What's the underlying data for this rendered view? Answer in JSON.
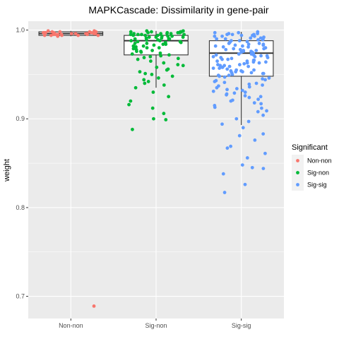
{
  "chart_data": {
    "type": "box+jitter",
    "title": "MAPKCascade: Dissimilarity in gene-pair",
    "xlabel": "",
    "ylabel": "weight",
    "ylim": [
      0.675,
      1.01
    ],
    "yticks": [
      0.7,
      0.8,
      0.9,
      1.0
    ],
    "ytick_labels": [
      "0.7",
      "0.8",
      "0.9",
      "1.0"
    ],
    "grid": true,
    "categories": [
      "Non-non",
      "Sig-non",
      "Sig-sig"
    ],
    "legend": {
      "title": "Significant",
      "placement": "right",
      "entries": [
        "Non-non",
        "Sig-non",
        "Sig-sig"
      ]
    },
    "colors": {
      "panel": "#EBEBEB",
      "grid": "#FFFFFF",
      "Non-non": "#F8766D",
      "Sig-non": "#00BA38",
      "Sig-sig": "#619CFF"
    },
    "series": [
      {
        "name": "Non-non",
        "box": {
          "min": 0.993,
          "q1": 0.994,
          "median": 0.996,
          "q3": 0.998,
          "max": 0.999
        },
        "points": [
          0.999,
          0.998,
          0.998,
          0.997,
          0.997,
          0.997,
          0.996,
          0.996,
          0.996,
          0.996,
          0.995,
          0.995,
          0.995,
          0.995,
          0.994,
          0.994,
          0.994,
          0.994,
          0.993,
          0.998,
          0.997,
          0.996,
          0.999,
          0.995,
          0.997,
          0.996,
          0.998,
          0.994,
          0.996,
          0.997,
          0.689
        ]
      },
      {
        "name": "Sig-non",
        "box": {
          "min": 0.935,
          "q1": 0.972,
          "median": 0.988,
          "q3": 0.994,
          "max": 0.999
        },
        "points": [
          0.999,
          0.999,
          0.998,
          0.998,
          0.998,
          0.997,
          0.997,
          0.997,
          0.996,
          0.996,
          0.996,
          0.995,
          0.995,
          0.995,
          0.994,
          0.994,
          0.993,
          0.993,
          0.992,
          0.992,
          0.991,
          0.991,
          0.99,
          0.99,
          0.989,
          0.988,
          0.988,
          0.987,
          0.986,
          0.986,
          0.985,
          0.984,
          0.983,
          0.982,
          0.981,
          0.98,
          0.979,
          0.978,
          0.977,
          0.976,
          0.975,
          0.974,
          0.973,
          0.972,
          0.971,
          0.97,
          0.969,
          0.968,
          0.967,
          0.965,
          0.963,
          0.961,
          0.96,
          0.958,
          0.956,
          0.955,
          0.953,
          0.951,
          0.95,
          0.948,
          0.946,
          0.944,
          0.942,
          0.94,
          0.938,
          0.935,
          0.93,
          0.925,
          0.92,
          0.916,
          0.912,
          0.906,
          0.9,
          0.899,
          0.888,
          0.997,
          0.995,
          0.993,
          0.99,
          0.987,
          0.984,
          0.98,
          0.976,
          0.996,
          0.992,
          0.989,
          0.998,
          0.994,
          0.985,
          0.982
        ]
      },
      {
        "name": "Sig-sig",
        "box": {
          "min": 0.893,
          "q1": 0.948,
          "median": 0.974,
          "q3": 0.988,
          "max": 0.998
        },
        "points": [
          0.998,
          0.997,
          0.997,
          0.996,
          0.995,
          0.995,
          0.994,
          0.993,
          0.993,
          0.992,
          0.991,
          0.99,
          0.99,
          0.989,
          0.988,
          0.987,
          0.986,
          0.985,
          0.984,
          0.983,
          0.982,
          0.981,
          0.98,
          0.979,
          0.978,
          0.977,
          0.976,
          0.975,
          0.974,
          0.973,
          0.972,
          0.971,
          0.97,
          0.969,
          0.968,
          0.967,
          0.966,
          0.965,
          0.964,
          0.963,
          0.962,
          0.961,
          0.96,
          0.959,
          0.958,
          0.957,
          0.956,
          0.955,
          0.954,
          0.953,
          0.952,
          0.951,
          0.95,
          0.949,
          0.948,
          0.946,
          0.944,
          0.942,
          0.94,
          0.938,
          0.936,
          0.934,
          0.932,
          0.93,
          0.928,
          0.926,
          0.924,
          0.922,
          0.92,
          0.918,
          0.915,
          0.912,
          0.908,
          0.904,
          0.9,
          0.897,
          0.894,
          0.89,
          0.883,
          0.881,
          0.876,
          0.869,
          0.867,
          0.861,
          0.856,
          0.848,
          0.845,
          0.844,
          0.838,
          0.826,
          0.817,
          0.996,
          0.993,
          0.99,
          0.987,
          0.984,
          0.981,
          0.978,
          0.975,
          0.972,
          0.969,
          0.966,
          0.963,
          0.96,
          0.957,
          0.954,
          0.951,
          0.994,
          0.991,
          0.988,
          0.985,
          0.982,
          0.979,
          0.976,
          0.973,
          0.97,
          0.967,
          0.964,
          0.961,
          0.958,
          0.955,
          0.952,
          0.949,
          0.945,
          0.941,
          0.937,
          0.933,
          0.929,
          0.925,
          0.921,
          0.917,
          0.913,
          0.909,
          0.995,
          0.989,
          0.983,
          0.977,
          0.971,
          0.965,
          0.959,
          0.953,
          0.947,
          0.943,
          0.939,
          0.935,
          0.931,
          0.927
        ]
      }
    ]
  }
}
